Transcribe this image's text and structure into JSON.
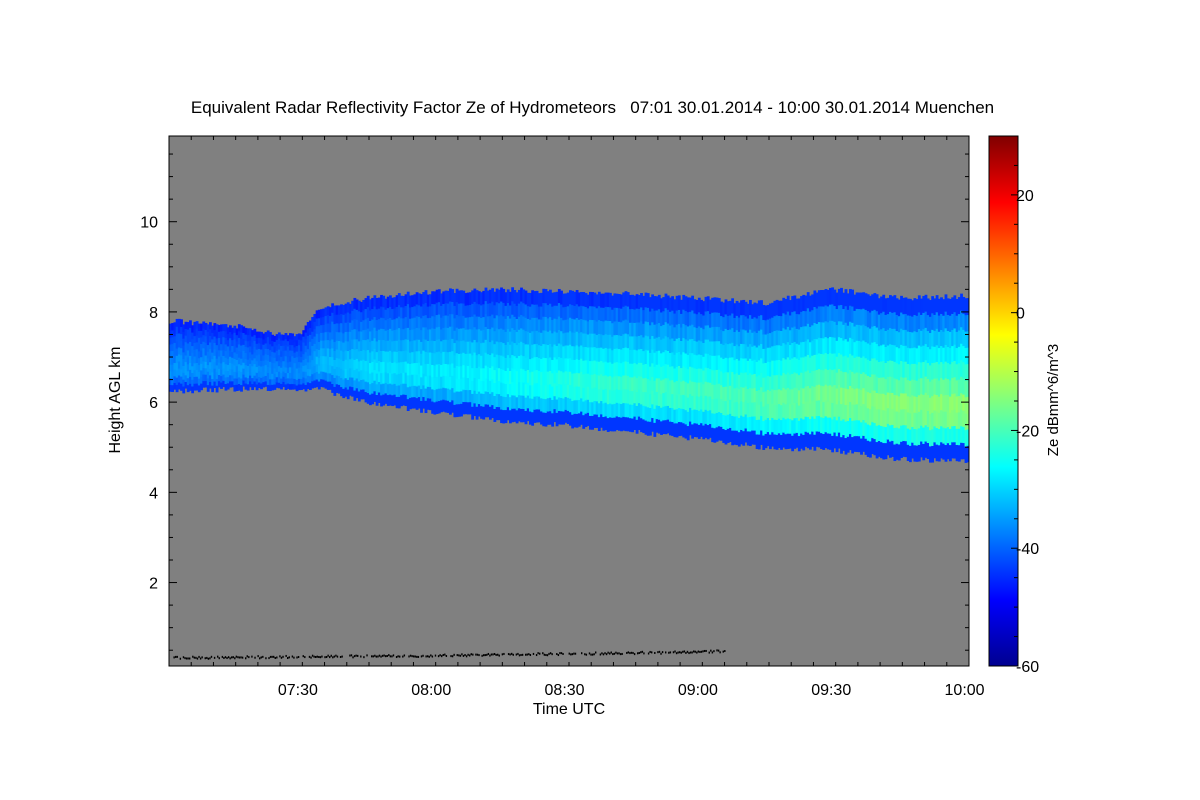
{
  "chart_data": {
    "type": "heatmap",
    "title": "Equivalent Radar Reflectivity Factor Ze of Hydrometeors   07:01 30.01.2014 - 10:00 30.01.2014 Muenchen",
    "xlabel": "Time UTC",
    "ylabel": "Height AGL km",
    "x_unit": "time UTC (hh:mm)",
    "xlim": [
      "07:01",
      "10:01"
    ],
    "ylim": [
      0.15,
      11.9
    ],
    "x_ticks": [
      "07:30",
      "08:00",
      "08:30",
      "09:00",
      "09:30",
      "10:00"
    ],
    "y_ticks": [
      2,
      4,
      6,
      8,
      10
    ],
    "background_color": "#808080",
    "grid": false,
    "colorbar": {
      "label": "Ze dBmm^6/m^3",
      "range": [
        -60,
        30
      ],
      "ticks": [
        -60,
        -40,
        -20,
        0,
        20
      ],
      "colormap": "jet",
      "placement": "right"
    },
    "cloud_layer": {
      "description": "ice cloud echo",
      "times": [
        "07:01",
        "07:15",
        "07:25",
        "07:30",
        "07:35",
        "07:45",
        "08:00",
        "08:15",
        "08:30",
        "08:45",
        "09:00",
        "09:15",
        "09:30",
        "09:45",
        "10:00"
      ],
      "top_km": [
        7.8,
        7.7,
        7.5,
        7.5,
        8.1,
        8.3,
        8.45,
        8.5,
        8.45,
        8.4,
        8.3,
        8.2,
        8.5,
        8.3,
        8.35
      ],
      "base_km": [
        6.25,
        6.3,
        6.3,
        6.3,
        6.3,
        6.0,
        5.8,
        5.6,
        5.5,
        5.35,
        5.2,
        5.0,
        4.95,
        4.75,
        4.7
      ],
      "peak_Ze_dBZ": [
        -35,
        -35,
        -36,
        -36,
        -32,
        -28,
        -27,
        -25,
        -22,
        -20,
        -19,
        -17,
        -14,
        -13,
        -12
      ]
    },
    "ground_clutter": {
      "description": "near-surface echo line",
      "times": [
        "07:02",
        "08:00",
        "09:00",
        "09:06"
      ],
      "height_km": [
        0.35,
        0.4,
        0.48,
        0.5
      ]
    }
  }
}
